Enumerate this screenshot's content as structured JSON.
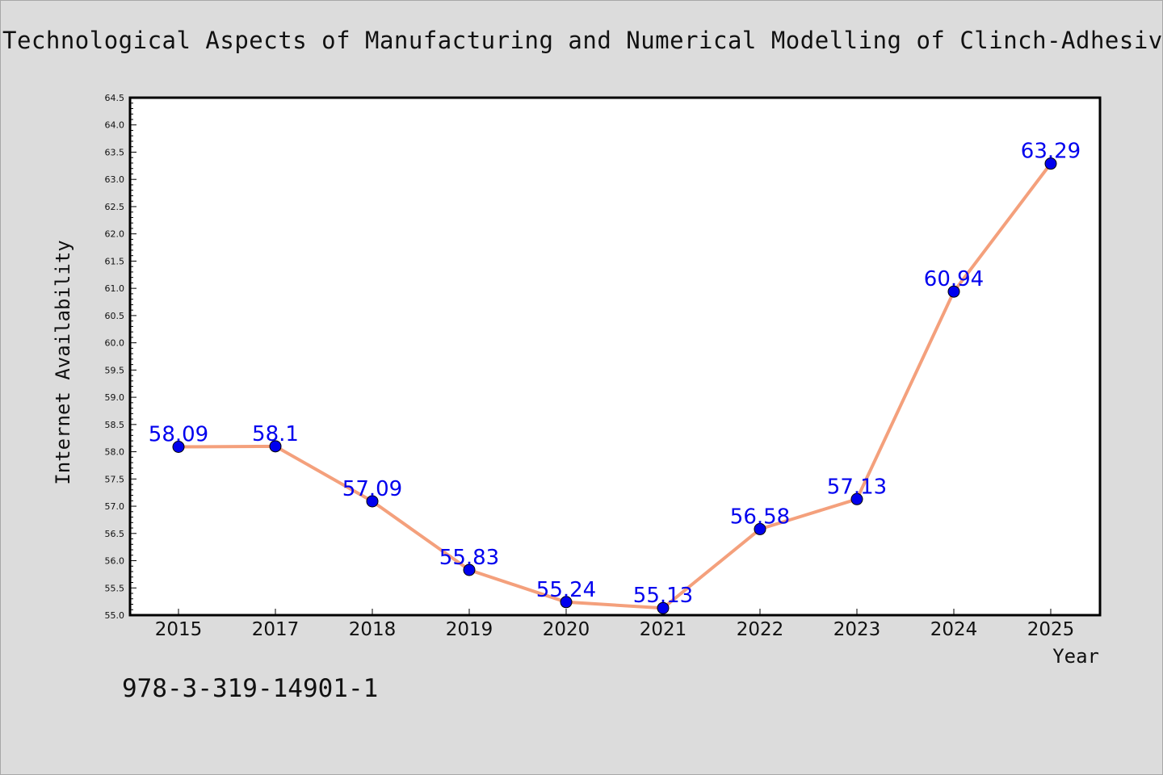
{
  "page": {
    "title": "Technological Aspects of Manufacturing and Numerical Modelling of Clinch-Adhesive",
    "isbn": "978-3-319-14901-1"
  },
  "chart_data": {
    "type": "line",
    "title": "Technological Aspects of Manufacturing and Numerical Modelling of Clinch-Adhesive",
    "xlabel": "Year",
    "ylabel": "Internet Availability",
    "categories": [
      "2015",
      "2017",
      "2018",
      "2019",
      "2020",
      "2021",
      "2022",
      "2023",
      "2024",
      "2025"
    ],
    "series": [
      {
        "values": [
          58.09,
          58.1,
          57.09,
          55.83,
          55.24,
          55.13,
          56.58,
          57.13,
          60.94,
          63.29
        ],
        "labels": [
          "58.09",
          "58.1",
          "57.09",
          "55.83",
          "55.24",
          "55.13",
          "56.58",
          "57.13",
          "60.94",
          "63.29"
        ]
      }
    ],
    "ylim": [
      55.0,
      64.5
    ],
    "yticks": [
      "55.0",
      "55.5",
      "56.0",
      "56.5",
      "57.0",
      "57.5",
      "58.0",
      "58.5",
      "59.0",
      "59.5",
      "60.0",
      "60.5",
      "61.0",
      "61.5",
      "62.0",
      "62.5",
      "63.0",
      "63.5",
      "64.0",
      "64.5"
    ],
    "grid": false,
    "legend": "none",
    "colors": {
      "line": "#f4a07c",
      "marker": "#0000ee",
      "data_label": "#0000ee",
      "background": "#dcdcdc",
      "plot_background": "#ffffff"
    }
  }
}
